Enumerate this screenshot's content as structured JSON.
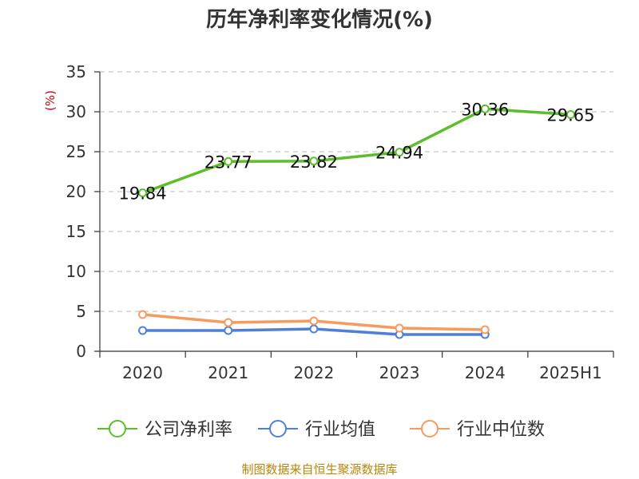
{
  "chart_data": {
    "type": "line",
    "title": "历年净利率变化情况(%)",
    "ylabel": "(%)",
    "xlabel": "",
    "categories": [
      "2020",
      "2021",
      "2022",
      "2023",
      "2024",
      "2025H1"
    ],
    "yticks": [
      "0",
      "5",
      "10",
      "15",
      "20",
      "25",
      "30",
      "35"
    ],
    "ylim": [
      0,
      35
    ],
    "grid": true,
    "legend_position": "bottom",
    "series": [
      {
        "name": "公司净利率",
        "color": "#5cbf2a",
        "values": [
          19.84,
          23.77,
          23.82,
          24.94,
          30.36,
          29.65
        ],
        "labels": [
          "19.84",
          "23.77",
          "23.82",
          "24.94",
          "30.36",
          "29.65"
        ]
      },
      {
        "name": "行业均值",
        "color": "#4f7fd9",
        "values": [
          2.6,
          2.6,
          2.8,
          2.1,
          2.1,
          null
        ]
      },
      {
        "name": "行业中位数",
        "color": "#f79a5e",
        "values": [
          4.6,
          3.6,
          3.8,
          2.9,
          2.7,
          null
        ]
      }
    ]
  },
  "source_text": "制图数据来自恒生聚源数据库"
}
